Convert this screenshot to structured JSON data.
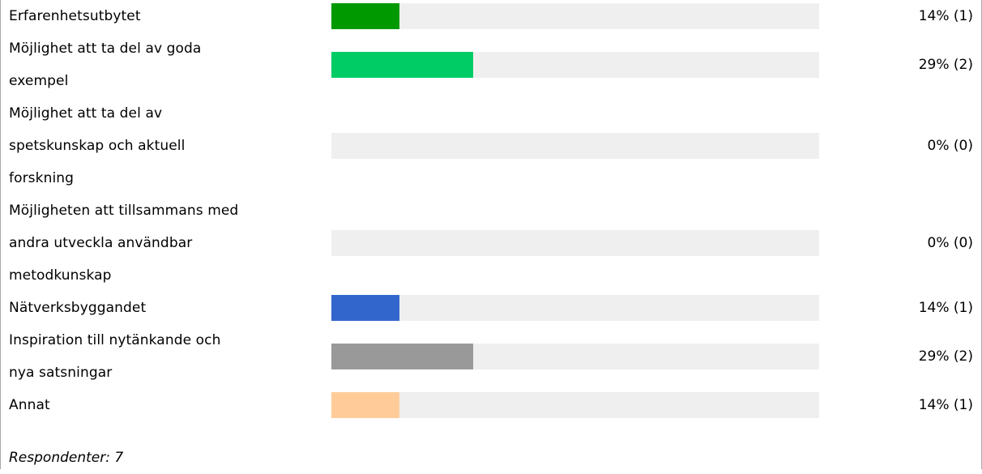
{
  "chart_data": {
    "type": "bar",
    "orientation": "horizontal",
    "categories": [
      "Erfarenhetsutbytet",
      "Möjlighet att ta del av goda\nexempel",
      "Möjlighet att ta del av\nspetskunskap och aktuell\nforskning",
      "Möjligheten att tillsammans med\nandra utveckla användbar\nmetodkunskap",
      "Nätverksbyggandet",
      "Inspiration till nytänkande och\nnya satsningar",
      "Annat"
    ],
    "percent": [
      14,
      29,
      0,
      0,
      14,
      29,
      14
    ],
    "counts": [
      1,
      2,
      0,
      0,
      1,
      2,
      1
    ],
    "value_labels": [
      "14% (1)",
      "29% (2)",
      "0% (0)",
      "0% (0)",
      "14% (1)",
      "29% (2)",
      "14% (1)"
    ],
    "colors": [
      "#009900",
      "#00cc66",
      "#009900",
      "#009900",
      "#3366cc",
      "#999999",
      "#ffcc99"
    ],
    "xlim": [
      0,
      100
    ],
    "track_color": "#efefef"
  },
  "footer": {
    "respondents": "Respondenter: 7"
  }
}
